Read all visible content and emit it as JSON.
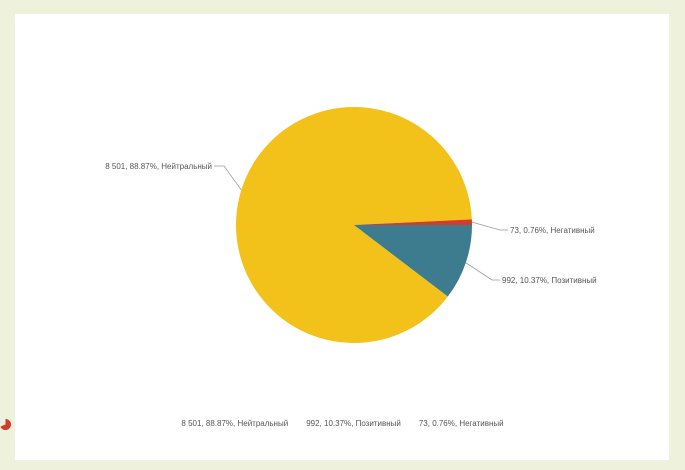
{
  "chart_data": {
    "type": "pie",
    "slices": [
      {
        "name": "Нейтральный",
        "value": 8501,
        "percent": 88.87,
        "label": "8 501, 88.87%, Нейтральный",
        "color": "#f2c21b"
      },
      {
        "name": "Позитивный",
        "value": 992,
        "percent": 10.37,
        "label": "992, 10.37%, Позитивный",
        "color": "#3c7c8e"
      },
      {
        "name": "Негативный",
        "value": 73,
        "percent": 0.76,
        "label": "73, 0.76%, Негативный",
        "color": "#d33b2f"
      }
    ],
    "legend_position": "bottom"
  }
}
